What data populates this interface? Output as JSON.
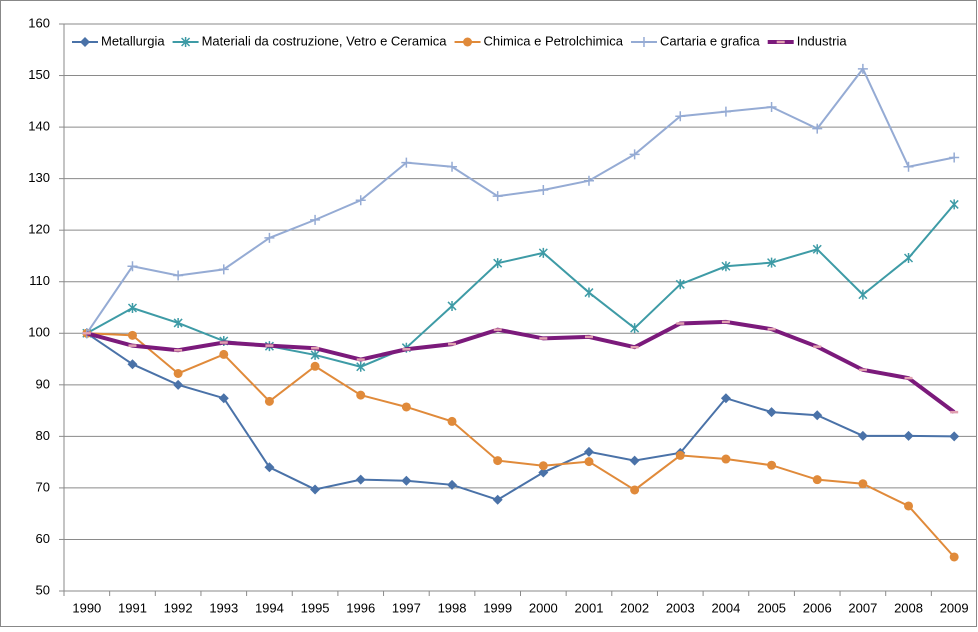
{
  "chart_data": {
    "type": "line",
    "categories": [
      "1990",
      "1991",
      "1992",
      "1993",
      "1994",
      "1995",
      "1996",
      "1997",
      "1998",
      "1999",
      "2000",
      "2001",
      "2002",
      "2003",
      "2004",
      "2005",
      "2006",
      "2007",
      "2008",
      "2009"
    ],
    "series": [
      {
        "name": "Metallurgia",
        "color": "#4a72a8",
        "marker": "diamond",
        "width": 2,
        "values": [
          100,
          94,
          90,
          87.4,
          74,
          69.7,
          71.6,
          71.4,
          70.6,
          67.7,
          73,
          77,
          75.3,
          76.8,
          87.4,
          84.7,
          84.1,
          80.1,
          80.1,
          80
        ]
      },
      {
        "name": "Materiali da costruzione, Vetro e Ceramica",
        "color": "#3e9ba6",
        "marker": "star",
        "width": 2,
        "values": [
          100,
          104.9,
          102,
          98.5,
          97.5,
          95.8,
          93.5,
          97.2,
          105.3,
          113.6,
          115.6,
          107.9,
          101,
          109.5,
          113,
          113.7,
          116.3,
          107.5,
          114.6,
          125
        ]
      },
      {
        "name": "Chimica e Petrolchimica",
        "color": "#e08a3a",
        "marker": "circle",
        "width": 2,
        "values": [
          100,
          99.6,
          92.2,
          95.9,
          86.8,
          93.6,
          88,
          85.7,
          82.9,
          75.3,
          74.3,
          75.1,
          69.6,
          76.3,
          75.6,
          74.4,
          71.6,
          70.8,
          66.5,
          56.6
        ]
      },
      {
        "name": "Cartaria e grafica",
        "color": "#95abd4",
        "marker": "plus",
        "width": 2,
        "values": [
          100,
          113,
          111.2,
          112.4,
          118.5,
          122,
          125.8,
          133.1,
          132.3,
          126.6,
          127.8,
          129.6,
          134.7,
          142.1,
          143,
          143.9,
          139.7,
          151.3,
          132.3,
          134.1
        ]
      },
      {
        "name": "Industria",
        "color": "#7b1a7b",
        "marker": "dash",
        "width": 4,
        "values": [
          100,
          97.6,
          96.7,
          98.2,
          97.6,
          97.1,
          94.9,
          96.9,
          97.9,
          100.7,
          99,
          99.3,
          97.3,
          101.9,
          102.2,
          100.8,
          97.4,
          92.9,
          91.3,
          84.7
        ]
      }
    ],
    "ylim": [
      50,
      160
    ],
    "yticks": [
      50,
      60,
      70,
      80,
      90,
      100,
      110,
      120,
      130,
      140,
      150,
      160
    ],
    "grid": true,
    "legend": "top"
  }
}
